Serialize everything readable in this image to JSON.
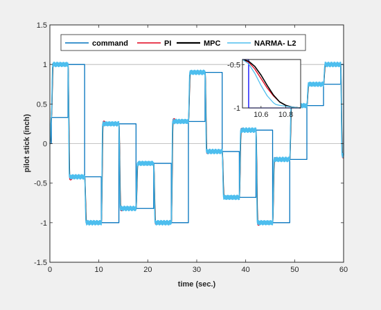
{
  "chart_data": [
    {
      "type": "line",
      "xlabel": "time (sec.)",
      "ylabel": "pilot stick (inch)",
      "xlim": [
        0,
        60
      ],
      "ylim": [
        -1.5,
        1.5
      ],
      "xticks": [
        "0",
        "10",
        "20",
        "30",
        "40",
        "50",
        "60"
      ],
      "yticks": [
        "-1.5",
        "-1",
        "-0.5",
        "0",
        "0.5",
        "1",
        "1.5"
      ],
      "grid": "horizontal lines at y = 0 and y = 1",
      "legend_position": "top",
      "series": [
        {
          "name": "command",
          "color": "#0072bd",
          "x": [
            0,
            0.3,
            3.7,
            7.1,
            10.5,
            14.1,
            17.6,
            21.2,
            24.8,
            28.3,
            31.7,
            35.2,
            38.7,
            42.1,
            45.5,
            49.0,
            52.5,
            55.9,
            59.4,
            60
          ],
          "y": [
            0,
            0.33,
            1.0,
            -0.42,
            -1.0,
            0.25,
            -0.82,
            -0.25,
            -1.0,
            0.28,
            0.9,
            -0.1,
            -0.68,
            0.17,
            -1.0,
            -0.2,
            0.48,
            0.75,
            1.0,
            -0.15
          ]
        },
        {
          "name": "PI",
          "color": "#e2001a"
        },
        {
          "name": "MPC",
          "color": "#000000"
        },
        {
          "name": "NARMA- L2",
          "color": "#4dbeee"
        }
      ]
    },
    {
      "type": "line",
      "inset": true,
      "xlim": [
        10.45,
        10.92
      ],
      "ylim": [
        -1.0,
        -0.44
      ],
      "xticks": [
        "10.6",
        "10.8"
      ],
      "yticks": [
        "-0.5",
        "-1"
      ],
      "series": [
        {
          "name": "command",
          "color": "#0000ff",
          "x": [
            10.45,
            10.5,
            10.5,
            10.92
          ],
          "y": [
            -0.44,
            -0.44,
            -1.0,
            -1.0
          ]
        },
        {
          "name": "PI",
          "color": "#e2001a",
          "x": [
            10.45,
            10.5,
            10.55,
            10.6,
            10.65,
            10.7,
            10.75,
            10.8,
            10.85,
            10.92
          ],
          "y": [
            -0.44,
            -0.47,
            -0.55,
            -0.66,
            -0.77,
            -0.86,
            -0.93,
            -0.97,
            -0.99,
            -1.0
          ]
        },
        {
          "name": "MPC",
          "color": "#000000",
          "x": [
            10.45,
            10.5,
            10.55,
            10.6,
            10.65,
            10.7,
            10.75,
            10.8,
            10.85,
            10.92
          ],
          "y": [
            -0.44,
            -0.46,
            -0.52,
            -0.62,
            -0.74,
            -0.85,
            -0.93,
            -0.97,
            -0.99,
            -1.0
          ]
        },
        {
          "name": "NARMA- L2",
          "color": "#4dbeee",
          "x": [
            10.45,
            10.5,
            10.55,
            10.6,
            10.65,
            10.7,
            10.72,
            10.75,
            10.8,
            10.85,
            10.92
          ],
          "y": [
            -0.44,
            -0.49,
            -0.6,
            -0.74,
            -0.86,
            -0.94,
            -0.96,
            -0.97,
            -0.98,
            -0.99,
            -1.0
          ]
        }
      ]
    }
  ]
}
